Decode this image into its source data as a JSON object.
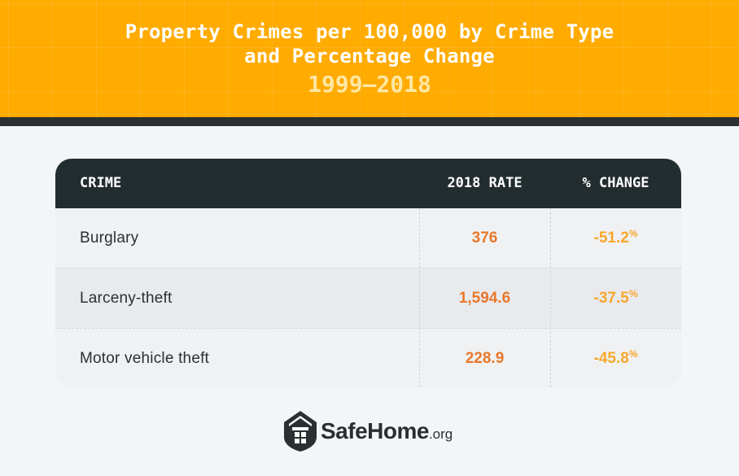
{
  "header": {
    "title_line1": "Property Crimes per 100,000 by Crime Type",
    "title_line2": "and Percentage Change",
    "subtitle": "1999–2018"
  },
  "table": {
    "columns": [
      "CRIME",
      "2018 RATE",
      "% CHANGE"
    ],
    "rows": [
      {
        "crime": "Burglary",
        "rate": "376",
        "change": "-51.2",
        "change_unit": "%"
      },
      {
        "crime": "Larceny-theft",
        "rate": "1,594.6",
        "change": "-37.5",
        "change_unit": "%"
      },
      {
        "crime": "Motor vehicle theft",
        "rate": "228.9",
        "change": "-45.8",
        "change_unit": "%"
      }
    ]
  },
  "footer": {
    "brand": "SafeHome",
    "brand_suffix": ".org",
    "logo_icon": "house-shield-icon"
  },
  "colors": {
    "header_bg": "#ffab00",
    "table_head_bg": "#232c2f",
    "rate_color": "#e8782b",
    "change_color": "#f7a72c"
  }
}
